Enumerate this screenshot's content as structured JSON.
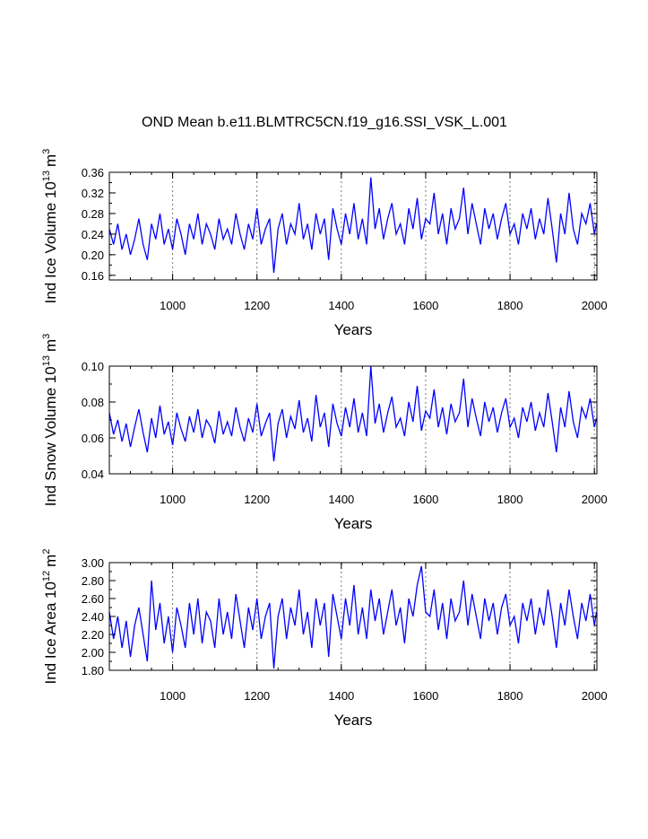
{
  "chart_data": {
    "type": "line",
    "title": "OND Mean b.e11.BLMTRC5CN.f19_g16.SSI_VSK_L.001",
    "x": [
      850,
      860,
      870,
      880,
      890,
      900,
      910,
      920,
      930,
      940,
      950,
      960,
      970,
      980,
      990,
      1000,
      1010,
      1020,
      1030,
      1040,
      1050,
      1060,
      1070,
      1080,
      1090,
      1100,
      1110,
      1120,
      1130,
      1140,
      1150,
      1160,
      1170,
      1180,
      1190,
      1200,
      1210,
      1220,
      1230,
      1240,
      1250,
      1260,
      1270,
      1280,
      1290,
      1300,
      1310,
      1320,
      1330,
      1340,
      1350,
      1360,
      1370,
      1380,
      1390,
      1400,
      1410,
      1420,
      1430,
      1440,
      1450,
      1460,
      1470,
      1480,
      1490,
      1500,
      1510,
      1520,
      1530,
      1540,
      1550,
      1560,
      1570,
      1580,
      1590,
      1600,
      1610,
      1620,
      1630,
      1640,
      1650,
      1660,
      1670,
      1680,
      1690,
      1700,
      1710,
      1720,
      1730,
      1740,
      1750,
      1760,
      1770,
      1780,
      1790,
      1800,
      1810,
      1820,
      1830,
      1840,
      1850,
      1860,
      1870,
      1880,
      1890,
      1900,
      1910,
      1920,
      1930,
      1940,
      1950,
      1960,
      1970,
      1980,
      1990,
      2000,
      2005
    ],
    "xlim": [
      850,
      2006
    ],
    "xticks": [
      1000,
      1200,
      1400,
      1600,
      1800,
      2000
    ],
    "grid": true,
    "panels": [
      {
        "ylabel": {
          "text": "Ind Ice Volume 10",
          "exp": "13",
          "unit": "m",
          "unit_exp": "3"
        },
        "xlabel": "Years",
        "ylim": [
          0.151,
          0.36
        ],
        "yticks": [
          0.16,
          {
            "value": 0.2,
            "label": "0.20"
          },
          0.24,
          0.28,
          0.32,
          0.36
        ],
        "color": "#0000ff",
        "values": [
          0.25,
          0.22,
          0.26,
          0.21,
          0.24,
          0.2,
          0.23,
          0.27,
          0.22,
          0.19,
          0.26,
          0.23,
          0.28,
          0.22,
          0.25,
          0.21,
          0.27,
          0.24,
          0.2,
          0.26,
          0.23,
          0.28,
          0.22,
          0.26,
          0.24,
          0.21,
          0.27,
          0.23,
          0.25,
          0.22,
          0.28,
          0.24,
          0.21,
          0.26,
          0.23,
          0.29,
          0.22,
          0.25,
          0.27,
          0.165,
          0.25,
          0.28,
          0.22,
          0.26,
          0.24,
          0.3,
          0.23,
          0.26,
          0.21,
          0.28,
          0.24,
          0.27,
          0.19,
          0.29,
          0.25,
          0.22,
          0.28,
          0.24,
          0.3,
          0.23,
          0.27,
          0.22,
          0.35,
          0.25,
          0.29,
          0.23,
          0.27,
          0.3,
          0.24,
          0.26,
          0.22,
          0.29,
          0.25,
          0.31,
          0.23,
          0.27,
          0.26,
          0.32,
          0.24,
          0.28,
          0.22,
          0.29,
          0.25,
          0.27,
          0.33,
          0.24,
          0.3,
          0.26,
          0.22,
          0.29,
          0.25,
          0.28,
          0.23,
          0.27,
          0.3,
          0.24,
          0.26,
          0.22,
          0.28,
          0.25,
          0.29,
          0.23,
          0.27,
          0.24,
          0.31,
          0.25,
          0.185,
          0.28,
          0.24,
          0.32,
          0.25,
          0.22,
          0.28,
          0.26,
          0.3,
          0.24,
          0.26
        ]
      },
      {
        "ylabel": {
          "text": "Ind Snow Volume 10",
          "exp": "13",
          "unit": "m",
          "unit_exp": "3"
        },
        "xlabel": "Years",
        "ylim": [
          0.04,
          0.1
        ],
        "yticks": [
          0.04,
          0.06,
          0.08,
          {
            "value": 0.1,
            "label": "0.10"
          }
        ],
        "color": "#0000ff",
        "values": [
          0.074,
          0.062,
          0.07,
          0.058,
          0.068,
          0.055,
          0.066,
          0.076,
          0.063,
          0.052,
          0.071,
          0.06,
          0.078,
          0.062,
          0.069,
          0.056,
          0.074,
          0.065,
          0.058,
          0.072,
          0.063,
          0.076,
          0.06,
          0.07,
          0.066,
          0.057,
          0.075,
          0.062,
          0.069,
          0.061,
          0.077,
          0.066,
          0.058,
          0.071,
          0.063,
          0.079,
          0.061,
          0.068,
          0.074,
          0.047,
          0.068,
          0.076,
          0.06,
          0.072,
          0.065,
          0.081,
          0.063,
          0.071,
          0.058,
          0.084,
          0.066,
          0.074,
          0.055,
          0.079,
          0.068,
          0.061,
          0.077,
          0.066,
          0.082,
          0.063,
          0.074,
          0.061,
          0.1,
          0.068,
          0.079,
          0.063,
          0.074,
          0.083,
          0.066,
          0.071,
          0.061,
          0.08,
          0.069,
          0.089,
          0.064,
          0.075,
          0.071,
          0.087,
          0.066,
          0.077,
          0.062,
          0.079,
          0.069,
          0.074,
          0.093,
          0.066,
          0.082,
          0.071,
          0.061,
          0.08,
          0.069,
          0.077,
          0.063,
          0.074,
          0.082,
          0.066,
          0.071,
          0.06,
          0.077,
          0.069,
          0.08,
          0.064,
          0.074,
          0.066,
          0.085,
          0.069,
          0.052,
          0.077,
          0.066,
          0.086,
          0.069,
          0.06,
          0.077,
          0.071,
          0.082,
          0.066,
          0.071
        ]
      },
      {
        "ylabel": {
          "text": "Ind Ice Area 10",
          "exp": "12",
          "unit": "m",
          "unit_exp": "2"
        },
        "xlabel": "Years",
        "ylim": [
          1.8,
          3.0
        ],
        "yticks": [
          {
            "value": 1.8,
            "label": "1.80"
          },
          {
            "value": 2.0,
            "label": "2.00"
          },
          {
            "value": 2.2,
            "label": "2.20"
          },
          {
            "value": 2.4,
            "label": "2.40"
          },
          {
            "value": 2.6,
            "label": "2.60"
          },
          {
            "value": 2.8,
            "label": "2.80"
          },
          {
            "value": 3.0,
            "label": "3.00"
          }
        ],
        "color": "#0000ff",
        "values": [
          2.45,
          2.15,
          2.4,
          2.05,
          2.35,
          1.95,
          2.3,
          2.5,
          2.2,
          1.9,
          2.8,
          2.25,
          2.55,
          2.1,
          2.4,
          2.0,
          2.5,
          2.3,
          2.05,
          2.55,
          2.2,
          2.6,
          2.1,
          2.45,
          2.35,
          2.05,
          2.6,
          2.2,
          2.45,
          2.15,
          2.65,
          2.35,
          2.05,
          2.5,
          2.25,
          2.6,
          2.15,
          2.4,
          2.55,
          1.82,
          2.4,
          2.6,
          2.15,
          2.5,
          2.3,
          2.7,
          2.2,
          2.45,
          2.05,
          2.6,
          2.3,
          2.55,
          1.95,
          2.65,
          2.4,
          2.15,
          2.6,
          2.3,
          2.75,
          2.2,
          2.5,
          2.15,
          2.7,
          2.35,
          2.6,
          2.2,
          2.45,
          2.7,
          2.3,
          2.5,
          2.1,
          2.6,
          2.4,
          2.75,
          2.96,
          2.45,
          2.4,
          2.7,
          2.25,
          2.55,
          2.15,
          2.6,
          2.35,
          2.45,
          2.8,
          2.3,
          2.65,
          2.4,
          2.15,
          2.6,
          2.35,
          2.55,
          2.2,
          2.5,
          2.65,
          2.3,
          2.4,
          2.1,
          2.55,
          2.35,
          2.6,
          2.2,
          2.5,
          2.3,
          2.7,
          2.4,
          2.05,
          2.55,
          2.3,
          2.7,
          2.4,
          2.15,
          2.55,
          2.35,
          2.65,
          2.3,
          2.45
        ]
      }
    ]
  }
}
